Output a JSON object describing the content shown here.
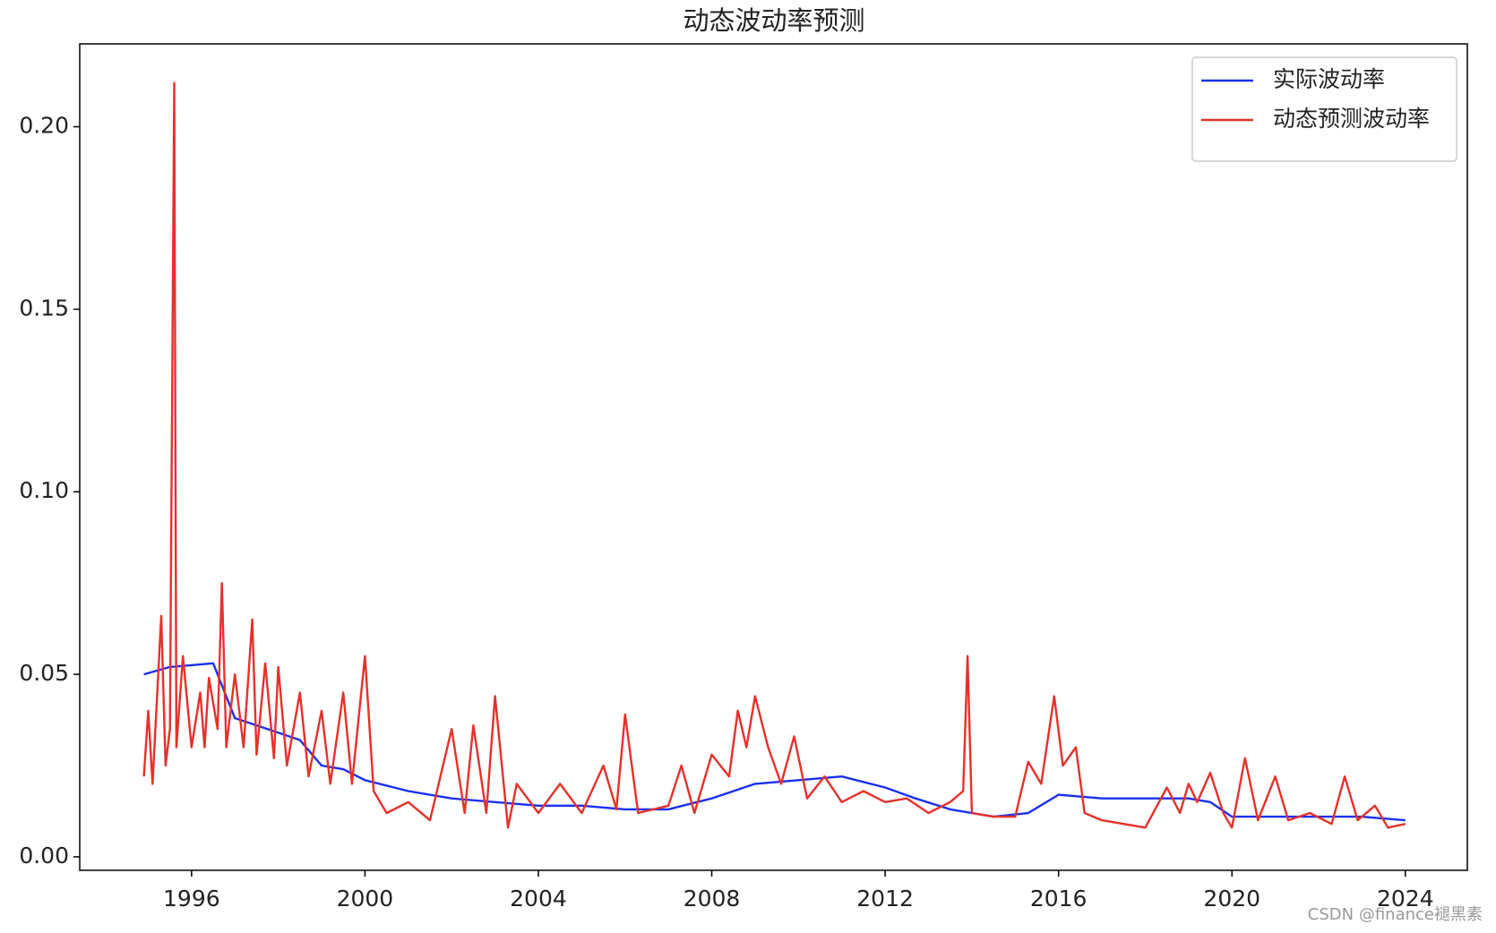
{
  "chart_data": {
    "type": "line",
    "title": "动态波动率预测",
    "xlim": [
      1993.42,
      2025.43
    ],
    "xticks": [
      1996,
      2000,
      2004,
      2008,
      2012,
      2016,
      2020,
      2024
    ],
    "ylim": [
      -0.0037,
      0.2227
    ],
    "yticks": [
      {
        "value": 0,
        "label": "0.00"
      },
      0.05,
      {
        "value": 0.1,
        "label": "0.10"
      },
      0.15,
      {
        "value": 0.2,
        "label": "0.20"
      }
    ],
    "legend": "upper right",
    "series": [
      {
        "name": "实际波动率",
        "color": "#1a2ff0",
        "x": [
          1994.9,
          1995.5,
          1996.5,
          1997.0,
          1998.0,
          1998.5,
          1999.0,
          1999.5,
          2000.0,
          2001.0,
          2002.0,
          2003.0,
          2004.0,
          2005.0,
          2006.0,
          2007.0,
          2008.0,
          2009.0,
          2010.0,
          2011.0,
          2012.0,
          2012.7,
          2013.5,
          2014.5,
          2015.3,
          2016.0,
          2017.0,
          2018.0,
          2019.0,
          2019.5,
          2020.0,
          2021.0,
          2022.0,
          2023.0,
          2024.0
        ],
        "values": [
          0.05,
          0.052,
          0.053,
          0.038,
          0.034,
          0.032,
          0.025,
          0.024,
          0.021,
          0.018,
          0.016,
          0.015,
          0.014,
          0.014,
          0.013,
          0.013,
          0.016,
          0.02,
          0.021,
          0.022,
          0.019,
          0.016,
          0.013,
          0.011,
          0.012,
          0.017,
          0.016,
          0.016,
          0.016,
          0.015,
          0.011,
          0.011,
          0.011,
          0.011,
          0.01
        ]
      },
      {
        "name": "动态预测波动率",
        "color": "#e8302a",
        "x": [
          1994.9,
          1995.0,
          1995.1,
          1995.3,
          1995.4,
          1995.5,
          1995.6,
          1995.65,
          1995.8,
          1996.0,
          1996.2,
          1996.3,
          1996.4,
          1996.6,
          1996.7,
          1996.8,
          1997.0,
          1997.2,
          1997.4,
          1997.5,
          1997.7,
          1997.9,
          1998.0,
          1998.2,
          1998.5,
          1998.7,
          1999.0,
          1999.2,
          1999.5,
          1999.7,
          2000.0,
          2000.2,
          2000.5,
          2001.0,
          2001.5,
          2002.0,
          2002.3,
          2002.5,
          2002.8,
          2003.0,
          2003.3,
          2003.5,
          2004.0,
          2004.5,
          2005.0,
          2005.5,
          2005.8,
          2006.0,
          2006.3,
          2007.0,
          2007.3,
          2007.6,
          2008.0,
          2008.4,
          2008.6,
          2008.8,
          2009.0,
          2009.3,
          2009.6,
          2009.9,
          2010.2,
          2010.6,
          2011.0,
          2011.5,
          2012.0,
          2012.5,
          2013.0,
          2013.5,
          2013.8,
          2013.9,
          2014.0,
          2014.5,
          2015.0,
          2015.3,
          2015.6,
          2015.9,
          2016.1,
          2016.4,
          2016.6,
          2017.0,
          2017.5,
          2018.0,
          2018.5,
          2018.8,
          2019.0,
          2019.2,
          2019.5,
          2019.8,
          2020.0,
          2020.3,
          2020.6,
          2021.0,
          2021.3,
          2021.8,
          2022.3,
          2022.6,
          2022.9,
          2023.3,
          2023.6,
          2024.0
        ],
        "values": [
          0.022,
          0.04,
          0.02,
          0.066,
          0.025,
          0.035,
          0.212,
          0.03,
          0.055,
          0.03,
          0.045,
          0.03,
          0.049,
          0.035,
          0.075,
          0.03,
          0.05,
          0.03,
          0.065,
          0.028,
          0.053,
          0.027,
          0.052,
          0.025,
          0.045,
          0.022,
          0.04,
          0.02,
          0.045,
          0.02,
          0.055,
          0.018,
          0.012,
          0.015,
          0.01,
          0.035,
          0.012,
          0.036,
          0.012,
          0.044,
          0.008,
          0.02,
          0.012,
          0.02,
          0.012,
          0.025,
          0.013,
          0.039,
          0.012,
          0.014,
          0.025,
          0.012,
          0.028,
          0.022,
          0.04,
          0.03,
          0.044,
          0.03,
          0.02,
          0.033,
          0.016,
          0.022,
          0.015,
          0.018,
          0.015,
          0.016,
          0.012,
          0.015,
          0.018,
          0.055,
          0.012,
          0.011,
          0.011,
          0.026,
          0.02,
          0.044,
          0.025,
          0.03,
          0.012,
          0.01,
          0.009,
          0.008,
          0.019,
          0.012,
          0.02,
          0.015,
          0.023,
          0.012,
          0.008,
          0.027,
          0.01,
          0.022,
          0.01,
          0.012,
          0.009,
          0.022,
          0.01,
          0.014,
          0.008,
          0.009
        ]
      }
    ]
  },
  "watermark": "CSDN @finance褪黑素"
}
